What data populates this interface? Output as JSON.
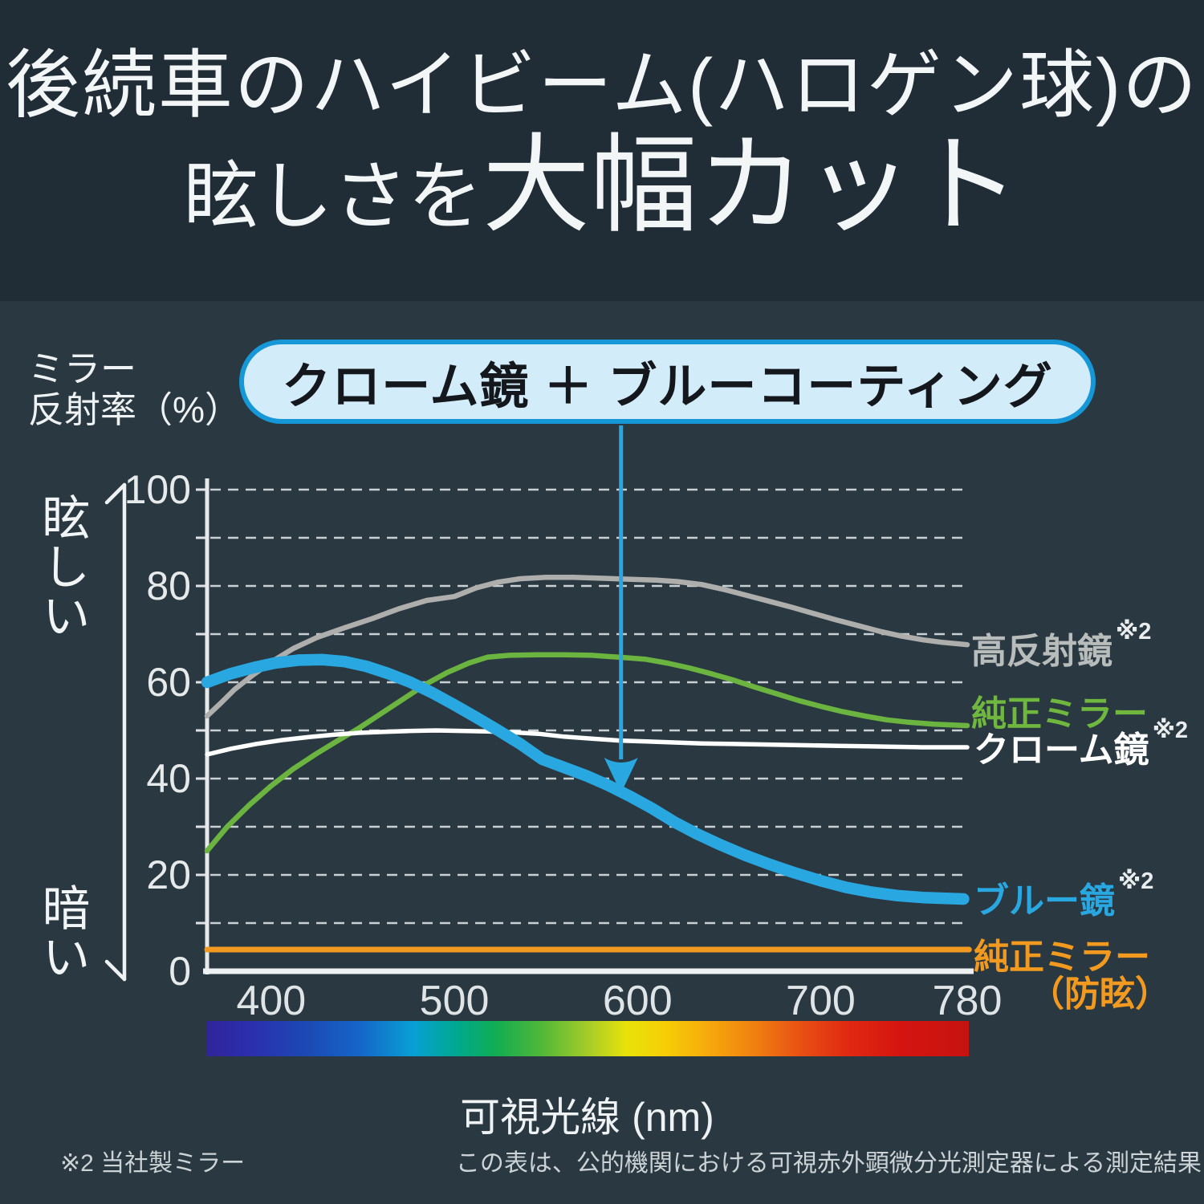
{
  "title": {
    "line1": "後続車のハイビーム(ハロゲン球)の",
    "line2_small": "眩しさを",
    "line2_large": "大幅カット"
  },
  "axis_label": {
    "line1": "ミラー",
    "line2": "反射率（%）"
  },
  "scale_labels": {
    "top": "眩しい",
    "bottom": "暗い"
  },
  "callout": {
    "text": "クローム鏡 ＋ ブルーコーティング",
    "fill": "#d3ecfa",
    "border": "#1597d8"
  },
  "legend": {
    "items": [
      {
        "label": "高反射鏡",
        "note": "※2",
        "color": "#b8bcbb"
      },
      {
        "label": "純正ミラー",
        "note": "",
        "color": "#6fb73f"
      },
      {
        "label": "クローム鏡",
        "note": "※2",
        "color": "#ffffff"
      },
      {
        "label": "ブルー鏡",
        "note": "※2",
        "color": "#29a7e0"
      },
      {
        "label": "純正ミラー",
        "label2": "（防眩）",
        "note": "",
        "color": "#f29a1f"
      }
    ]
  },
  "footnotes": {
    "left": "※2 当社製ミラー",
    "right": "この表は、公的機関における可視赤外顕微分光測定器による測定結果"
  },
  "chart_data": {
    "type": "line",
    "xlabel": "可視光線 (nm)",
    "ylabel": "ミラー反射率（%）",
    "xlim": [
      365,
      780
    ],
    "ylim": [
      0,
      100
    ],
    "xticks": [
      400,
      500,
      600,
      700,
      780
    ],
    "yticks": [
      0,
      20,
      40,
      60,
      80,
      100
    ],
    "grid_step": 10,
    "grid": true,
    "annotation": {
      "x_nm": 591,
      "points_to_pct": 37,
      "arrow_color": "#29a7e0"
    },
    "series": [
      {
        "name": "高反射鏡",
        "color": "#aeaeac",
        "width": 6.5,
        "points": [
          [
            365,
            53
          ],
          [
            372,
            55.5
          ],
          [
            380,
            58.5
          ],
          [
            390,
            61.5
          ],
          [
            400,
            64.2
          ],
          [
            412,
            67
          ],
          [
            425,
            69.3
          ],
          [
            440,
            71.3
          ],
          [
            455,
            73.2
          ],
          [
            470,
            75.3
          ],
          [
            485,
            77
          ],
          [
            500,
            77.8
          ],
          [
            512,
            79.6
          ],
          [
            524,
            80.8
          ],
          [
            536,
            81.5
          ],
          [
            550,
            81.8
          ],
          [
            565,
            81.8
          ],
          [
            580,
            81.6
          ],
          [
            595,
            81.4
          ],
          [
            610,
            81.2
          ],
          [
            622,
            80.9
          ],
          [
            635,
            80.3
          ],
          [
            648,
            79.2
          ],
          [
            660,
            78
          ],
          [
            672,
            76.8
          ],
          [
            684,
            75.6
          ],
          [
            696,
            74.3
          ],
          [
            708,
            73
          ],
          [
            720,
            71.8
          ],
          [
            732,
            70.6
          ],
          [
            744,
            69.6
          ],
          [
            756,
            68.8
          ],
          [
            766,
            68.3
          ],
          [
            780,
            67.8
          ]
        ]
      },
      {
        "name": "純正ミラー",
        "color": "#6cb440",
        "width": 6.5,
        "points": [
          [
            365,
            25
          ],
          [
            376,
            30
          ],
          [
            388,
            34.5
          ],
          [
            400,
            38.5
          ],
          [
            412,
            42
          ],
          [
            424,
            45
          ],
          [
            436,
            47.8
          ],
          [
            448,
            50.5
          ],
          [
            460,
            53.5
          ],
          [
            472,
            56.5
          ],
          [
            484,
            59.5
          ],
          [
            496,
            62
          ],
          [
            508,
            64
          ],
          [
            518,
            65.2
          ],
          [
            530,
            65.6
          ],
          [
            545,
            65.7
          ],
          [
            560,
            65.7
          ],
          [
            575,
            65.6
          ],
          [
            590,
            65.2
          ],
          [
            604,
            64.8
          ],
          [
            616,
            64
          ],
          [
            628,
            63
          ],
          [
            640,
            61.8
          ],
          [
            652,
            60.5
          ],
          [
            664,
            59
          ],
          [
            676,
            57.6
          ],
          [
            688,
            56.2
          ],
          [
            700,
            55
          ],
          [
            712,
            53.9
          ],
          [
            724,
            53
          ],
          [
            736,
            52.2
          ],
          [
            748,
            51.7
          ],
          [
            762,
            51.3
          ],
          [
            780,
            51
          ]
        ]
      },
      {
        "name": "クローム鏡",
        "color": "#ffffff",
        "width": 5.5,
        "points": [
          [
            365,
            45
          ],
          [
            378,
            46.2
          ],
          [
            392,
            47.2
          ],
          [
            406,
            48
          ],
          [
            420,
            48.6
          ],
          [
            434,
            49.1
          ],
          [
            448,
            49.5
          ],
          [
            462,
            49.7
          ],
          [
            476,
            49.9
          ],
          [
            490,
            50
          ],
          [
            504,
            49.9
          ],
          [
            518,
            49.8
          ],
          [
            532,
            49.6
          ],
          [
            546,
            49.3
          ],
          [
            560,
            48.7
          ],
          [
            575,
            48.3
          ],
          [
            590,
            47.9
          ],
          [
            605,
            47.7
          ],
          [
            620,
            47.5
          ],
          [
            635,
            47.3
          ],
          [
            650,
            47.2
          ],
          [
            665,
            47.1
          ],
          [
            680,
            47
          ],
          [
            695,
            46.9
          ],
          [
            710,
            46.8
          ],
          [
            725,
            46.7
          ],
          [
            740,
            46.6
          ],
          [
            755,
            46.5
          ],
          [
            780,
            46.5
          ]
        ]
      },
      {
        "name": "純正ミラー（防眩）",
        "color": "#f29a1f",
        "width": 7,
        "points": [
          [
            365,
            4.5
          ],
          [
            470,
            4.5
          ],
          [
            575,
            4.5
          ],
          [
            680,
            4.5
          ],
          [
            781,
            4.5
          ]
        ]
      },
      {
        "name": "ブルー鏡",
        "color": "#29a7e0",
        "width": 14.5,
        "points": [
          [
            365,
            60
          ],
          [
            378,
            61.8
          ],
          [
            390,
            63
          ],
          [
            402,
            64
          ],
          [
            415,
            64.6
          ],
          [
            428,
            64.7
          ],
          [
            440,
            64.3
          ],
          [
            452,
            63.3
          ],
          [
            464,
            61.8
          ],
          [
            476,
            60
          ],
          [
            488,
            57.8
          ],
          [
            500,
            55.3
          ],
          [
            512,
            52.7
          ],
          [
            524,
            50
          ],
          [
            536,
            47.2
          ],
          [
            548,
            44
          ],
          [
            560,
            42.3
          ],
          [
            572,
            40.6
          ],
          [
            584,
            38.6
          ],
          [
            596,
            36.3
          ],
          [
            608,
            33.8
          ],
          [
            620,
            31
          ],
          [
            632,
            28.6
          ],
          [
            645,
            26.3
          ],
          [
            658,
            24.2
          ],
          [
            672,
            22.2
          ],
          [
            686,
            20.4
          ],
          [
            700,
            18.8
          ],
          [
            714,
            17.4
          ],
          [
            728,
            16.4
          ],
          [
            742,
            15.7
          ],
          [
            756,
            15.3
          ],
          [
            770,
            15.1
          ],
          [
            778,
            15
          ]
        ]
      }
    ],
    "spectrum_bar": {
      "stops": [
        {
          "c": "#31249b",
          "o": 0
        },
        {
          "c": "#2b2fae",
          "o": 0.06
        },
        {
          "c": "#1c49b4",
          "o": 0.13
        },
        {
          "c": "#1565c8",
          "o": 0.2
        },
        {
          "c": "#089fd4",
          "o": 0.27
        },
        {
          "c": "#00a98c",
          "o": 0.33
        },
        {
          "c": "#12ad52",
          "o": 0.38
        },
        {
          "c": "#52b838",
          "o": 0.44
        },
        {
          "c": "#a5cc28",
          "o": 0.5
        },
        {
          "c": "#e8e20a",
          "o": 0.55
        },
        {
          "c": "#f6cf06",
          "o": 0.6
        },
        {
          "c": "#f6a80d",
          "o": 0.66
        },
        {
          "c": "#f07f10",
          "o": 0.72
        },
        {
          "c": "#e85014",
          "o": 0.78
        },
        {
          "c": "#e02a12",
          "o": 0.84
        },
        {
          "c": "#d51410",
          "o": 0.91
        },
        {
          "c": "#c61310",
          "o": 1
        }
      ]
    }
  }
}
